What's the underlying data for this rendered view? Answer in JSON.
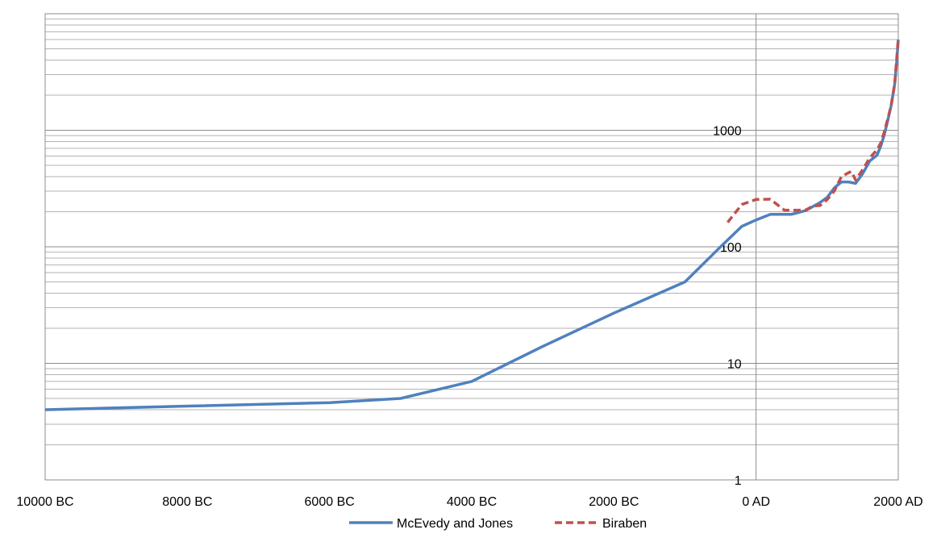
{
  "chart_data": {
    "type": "line",
    "x_ticks": [
      {
        "value": -10000,
        "label": "10000 BC"
      },
      {
        "value": -8000,
        "label": "8000 BC"
      },
      {
        "value": -6000,
        "label": "6000 BC"
      },
      {
        "value": -4000,
        "label": "4000 BC"
      },
      {
        "value": -2000,
        "label": "2000 BC"
      },
      {
        "value": 0,
        "label": "0 AD"
      },
      {
        "value": 2000,
        "label": "2000 AD"
      }
    ],
    "y_ticks": [
      {
        "value": 1,
        "label": "1"
      },
      {
        "value": 10,
        "label": "10"
      },
      {
        "value": 100,
        "label": "100"
      },
      {
        "value": 1000,
        "label": "1000"
      }
    ],
    "xlim": [
      -10000,
      2000
    ],
    "ylim": [
      1,
      10000
    ],
    "y_scale": "log",
    "grid": {
      "horizontal": true,
      "minor": true,
      "vertical_line_at": 0
    },
    "legend": {
      "position": "bottom"
    },
    "series": [
      {
        "name": "McEvedy and Jones",
        "color": "#4f81bd",
        "style": "solid",
        "points": [
          [
            -10000,
            4
          ],
          [
            -8000,
            4.3
          ],
          [
            -6000,
            4.6
          ],
          [
            -5000,
            5
          ],
          [
            -4000,
            7
          ],
          [
            -3000,
            14
          ],
          [
            -2000,
            27
          ],
          [
            -1000,
            50
          ],
          [
            -500,
            100
          ],
          [
            -200,
            150
          ],
          [
            0,
            170
          ],
          [
            200,
            190
          ],
          [
            500,
            190
          ],
          [
            700,
            205
          ],
          [
            900,
            240
          ],
          [
            1000,
            265
          ],
          [
            1100,
            320
          ],
          [
            1200,
            360
          ],
          [
            1300,
            360
          ],
          [
            1400,
            350
          ],
          [
            1500,
            425
          ],
          [
            1600,
            545
          ],
          [
            1700,
            610
          ],
          [
            1750,
            720
          ],
          [
            1800,
            900
          ],
          [
            1850,
            1200
          ],
          [
            1900,
            1625
          ],
          [
            1950,
            2500
          ],
          [
            1980,
            4000
          ],
          [
            2000,
            6000
          ]
        ]
      },
      {
        "name": "Biraben",
        "color": "#c0504d",
        "style": "dashed",
        "points": [
          [
            -400,
            162
          ],
          [
            -200,
            231
          ],
          [
            0,
            255
          ],
          [
            200,
            256
          ],
          [
            400,
            206
          ],
          [
            500,
            206
          ],
          [
            600,
            206
          ],
          [
            700,
            207
          ],
          [
            800,
            224
          ],
          [
            900,
            226
          ],
          [
            1000,
            254
          ],
          [
            1100,
            301
          ],
          [
            1200,
            400
          ],
          [
            1300,
            432
          ],
          [
            1340,
            443
          ],
          [
            1400,
            374
          ],
          [
            1500,
            460
          ],
          [
            1600,
            579
          ],
          [
            1700,
            679
          ],
          [
            1750,
            770
          ],
          [
            1800,
            954
          ],
          [
            1850,
            1241
          ],
          [
            1900,
            1633
          ],
          [
            1950,
            2516
          ],
          [
            2000,
            6070
          ]
        ]
      }
    ]
  }
}
